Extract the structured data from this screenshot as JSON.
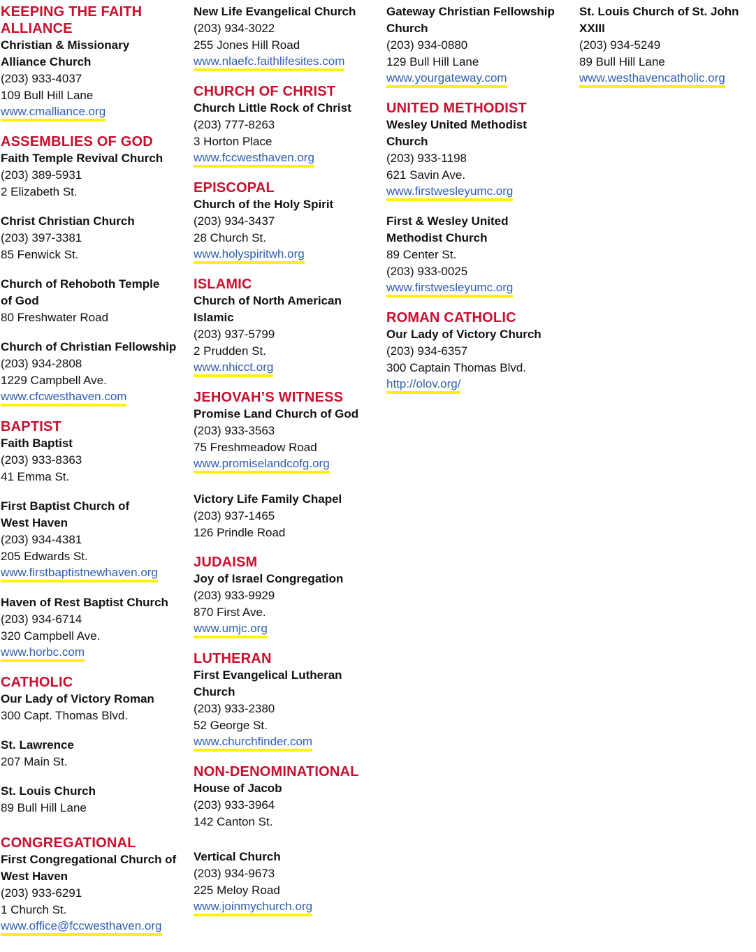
{
  "columns": [
    {
      "sections": [
        {
          "heading_lines": [
            "KEEPING THE FAITH",
            "ALLIANCE"
          ],
          "entries": [
            {
              "name_lines": [
                "Christian & Missionary",
                "Alliance Church"
              ],
              "lines": [
                "(203) 933-4037",
                "109 Bull Hill Lane"
              ],
              "url": "www.cmalliance.org"
            }
          ]
        },
        {
          "heading_lines": [
            "ASSEMBLIES OF GOD"
          ],
          "entries": [
            {
              "name_lines": [
                "Faith Temple Revival Church"
              ],
              "lines": [
                "(203) 389-5931",
                "2 Elizabeth St."
              ]
            },
            {
              "name_lines": [
                "Christ Christian Church"
              ],
              "lines": [
                "(203) 397-3381",
                "85 Fenwick St."
              ]
            },
            {
              "name_lines": [
                "Church of Rehoboth Temple",
                "of God"
              ],
              "lines": [
                "80 Freshwater Road"
              ]
            },
            {
              "name_lines": [
                "Church of Christian Fellowship"
              ],
              "lines": [
                "(203) 934-2808",
                "1229 Campbell Ave."
              ],
              "url": "www.cfcwesthaven.com"
            }
          ]
        },
        {
          "heading_lines": [
            "BAPTIST"
          ],
          "entries": [
            {
              "name_lines": [
                "Faith Baptist"
              ],
              "lines": [
                "(203) 933-8363",
                "41 Emma St."
              ]
            },
            {
              "name_lines": [
                "First Baptist Church of",
                "West Haven"
              ],
              "lines": [
                "(203) 934-4381",
                "205 Edwards St."
              ],
              "url": "www.firstbaptistnewhaven.org"
            },
            {
              "name_lines": [
                "Haven of Rest Baptist Church"
              ],
              "lines": [
                "(203) 934-6714",
                "320 Campbell Ave."
              ],
              "url": "www.horbc.com"
            }
          ]
        },
        {
          "heading_lines": [
            "CATHOLIC"
          ],
          "entries": [
            {
              "name_lines": [
                "Our Lady of Victory Roman"
              ],
              "lines": [
                "300 Capt. Thomas Blvd."
              ]
            },
            {
              "name_lines": [
                "St. Lawrence"
              ],
              "lines": [
                "207 Main St."
              ]
            },
            {
              "name_lines": [
                "St. Louis Church"
              ],
              "lines": [
                "89 Bull Hill Lane"
              ],
              "extra_gap": true
            }
          ]
        },
        {
          "heading_lines": [
            "CONGREGATIONAL"
          ],
          "entries": [
            {
              "name_lines": [
                "First Congregational Church of",
                "West Haven"
              ],
              "lines": [
                "(203) 933-6291",
                "1 Church St."
              ],
              "url": "www.office@fccwesthaven.org"
            }
          ]
        }
      ]
    },
    {
      "sections": [
        {
          "heading_lines": [],
          "entries": [
            {
              "name_lines": [
                "New Life Evangelical Church"
              ],
              "lines": [
                "(203) 934-3022",
                "255 Jones Hill Road"
              ],
              "url": "www.nlaefc.faithlifesites.com"
            }
          ]
        },
        {
          "heading_lines": [
            "CHURCH OF CHRIST"
          ],
          "entries": [
            {
              "name_lines": [
                "Church Little Rock of Christ"
              ],
              "lines": [
                "(203) 777-8263",
                "3 Horton Place"
              ],
              "url": "www.fccwesthaven.org"
            }
          ]
        },
        {
          "heading_lines": [
            "EPISCOPAL"
          ],
          "entries": [
            {
              "name_lines": [
                "Church of the Holy Spirit"
              ],
              "lines": [
                "(203) 934-3437",
                "28 Church St."
              ],
              "url": "www.holyspiritwh.org"
            }
          ]
        },
        {
          "heading_lines": [
            "ISLAMIC"
          ],
          "entries": [
            {
              "name_lines": [
                "Church of North American",
                "Islamic"
              ],
              "lines": [
                "(203) 937-5799",
                "2 Prudden St."
              ],
              "url": "www.nhicct.org"
            }
          ]
        },
        {
          "heading_lines": [
            "JEHOVAH’S WITNESS"
          ],
          "entries": [
            {
              "name_lines": [
                "Promise Land Church of God"
              ],
              "lines": [
                "(203) 933-3563",
                "75 Freshmeadow Road"
              ],
              "url": "www.promiselandcofg.org",
              "extra_gap": true
            },
            {
              "name_lines": [
                "Victory Life Family Chapel"
              ],
              "lines": [
                "(203) 937-1465",
                "126 Prindle Road"
              ]
            }
          ]
        },
        {
          "heading_lines": [
            "JUDAISM"
          ],
          "entries": [
            {
              "name_lines": [
                "Joy of Israel Congregation"
              ],
              "lines": [
                "(203) 933-9929",
                "870 First Ave."
              ],
              "url": "www.umjc.org"
            }
          ]
        },
        {
          "heading_lines": [
            "LUTHERAN"
          ],
          "entries": [
            {
              "name_lines": [
                "First Evangelical Lutheran",
                "Church"
              ],
              "lines": [
                "(203) 933-2380",
                "52 George St."
              ],
              "url": "www.churchfinder.com"
            }
          ]
        },
        {
          "heading_lines": [
            "NON-DENOMINATIONAL"
          ],
          "entries": [
            {
              "name_lines": [
                "House of Jacob"
              ],
              "lines": [
                "(203) 933-3964",
                "142 Canton St."
              ],
              "extra_gap": true
            },
            {
              "name_lines": [
                "Vertical Church"
              ],
              "lines": [
                "(203) 934-9673",
                "225 Meloy Road"
              ],
              "url": "www.joinmychurch.org"
            }
          ]
        }
      ]
    },
    {
      "sections": [
        {
          "heading_lines": [],
          "entries": [
            {
              "name_lines": [
                "Gateway Christian Fellowship",
                "Church"
              ],
              "lines": [
                "(203) 934-0880",
                "129 Bull Hill Lane"
              ],
              "url": "www.yourgateway.com"
            }
          ]
        },
        {
          "heading_lines": [
            "UNITED METHODIST"
          ],
          "entries": [
            {
              "name_lines": [
                "Wesley United Methodist",
                "Church"
              ],
              "lines": [
                "(203) 933-1198",
                "621 Savin Ave."
              ],
              "url": "www.firstwesleyumc.org"
            },
            {
              "name_lines": [
                "First & Wesley United",
                "Methodist Church"
              ],
              "lines": [
                "89 Center St.",
                "(203) 933-0025"
              ],
              "url": "www.firstwesleyumc.org"
            }
          ]
        },
        {
          "heading_lines": [
            "ROMAN CATHOLIC"
          ],
          "entries": [
            {
              "name_lines": [
                "Our Lady of Victory Church"
              ],
              "lines": [
                "(203) 934-6357",
                "300 Captain Thomas Blvd."
              ],
              "url": "http://olov.org/"
            }
          ]
        }
      ]
    },
    {
      "sections": [
        {
          "heading_lines": [],
          "entries": [
            {
              "name_lines": [
                "St. Louis Church of St. John",
                "XXIII"
              ],
              "lines": [
                "(203) 934-5249",
                "89 Bull Hill Lane"
              ],
              "url": "www.westhavencatholic.org"
            }
          ]
        }
      ]
    }
  ],
  "colors": {
    "heading": "#c8102e",
    "link": "#2f5fb3",
    "link_underline": "#fff200"
  }
}
